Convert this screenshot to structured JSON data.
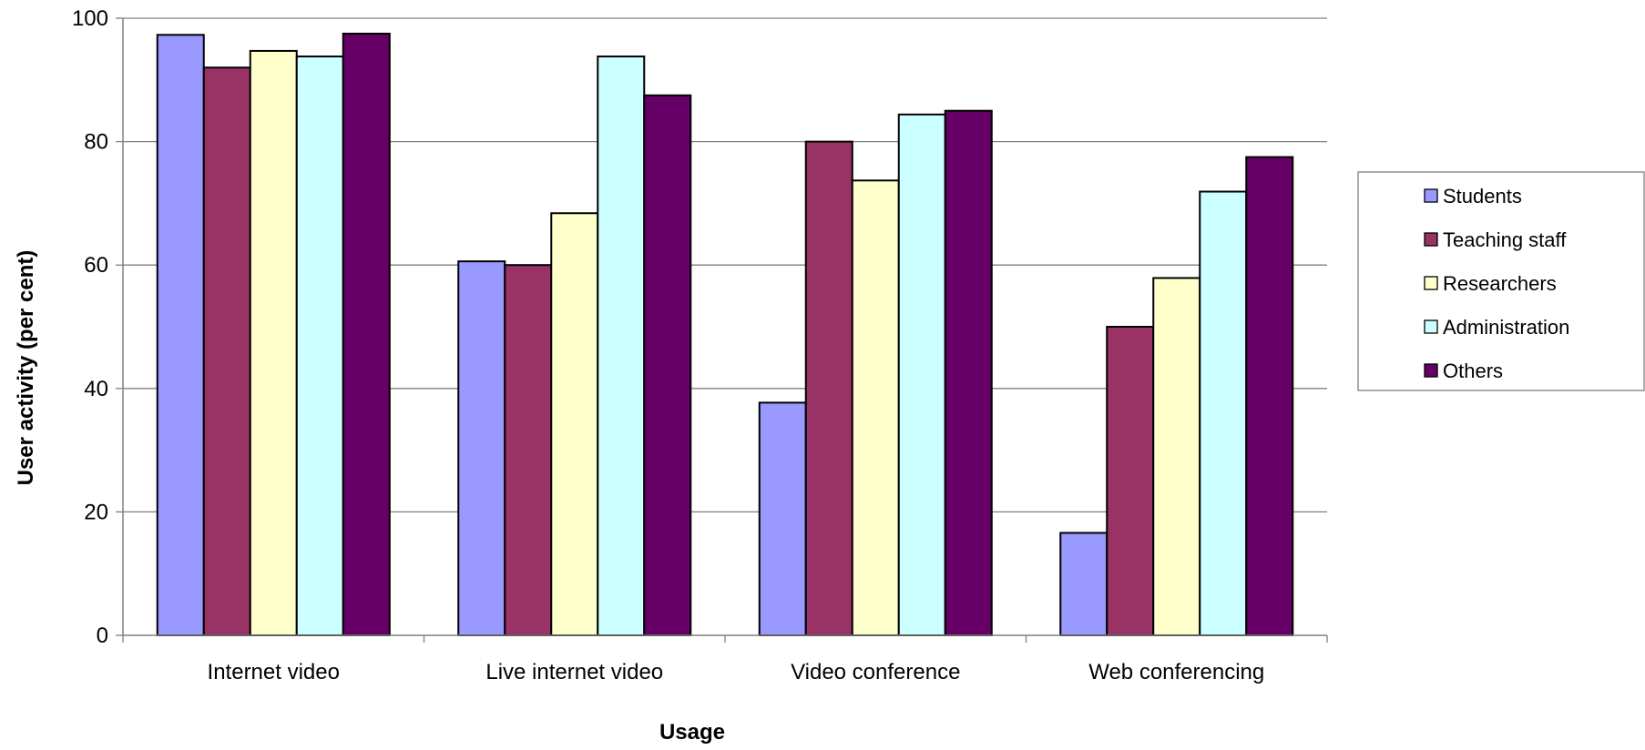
{
  "chart_data": {
    "type": "bar",
    "xlabel": "Usage",
    "ylabel": "User activity (per cent)",
    "ylim": [
      0,
      100
    ],
    "yticks": [
      0,
      20,
      40,
      60,
      80,
      100
    ],
    "grid": true,
    "legend_position": "right",
    "categories": [
      "Internet video",
      "Live internet video",
      "Video conference",
      "Web conferencing"
    ],
    "series": [
      {
        "name": "Students",
        "color": "#9999FF",
        "values": [
          97.3,
          60.6,
          37.7,
          16.6
        ]
      },
      {
        "name": "Teaching staff",
        "color": "#993366",
        "values": [
          92.0,
          60.0,
          80.0,
          50.0
        ]
      },
      {
        "name": "Researchers",
        "color": "#FFFFCC",
        "values": [
          94.7,
          68.4,
          73.7,
          57.9
        ]
      },
      {
        "name": "Administration",
        "color": "#CCFFFF",
        "values": [
          93.8,
          93.8,
          84.4,
          71.9
        ]
      },
      {
        "name": "Others",
        "color": "#660066",
        "values": [
          97.5,
          87.5,
          85.0,
          77.5
        ]
      }
    ]
  }
}
